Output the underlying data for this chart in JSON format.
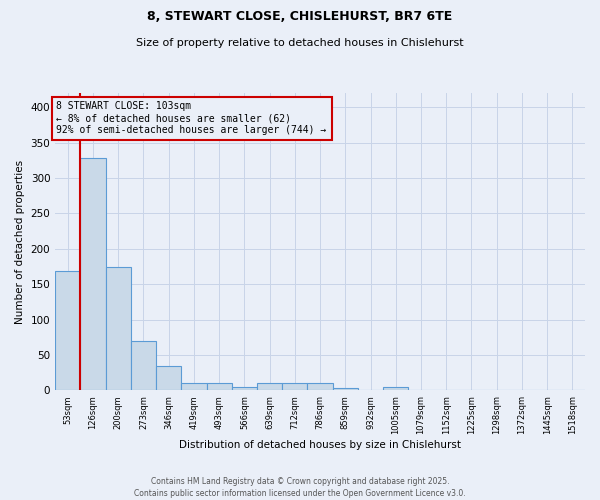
{
  "title1": "8, STEWART CLOSE, CHISLEHURST, BR7 6TE",
  "title2": "Size of property relative to detached houses in Chislehurst",
  "xlabel": "Distribution of detached houses by size in Chislehurst",
  "ylabel": "Number of detached properties",
  "categories": [
    "53sqm",
    "126sqm",
    "200sqm",
    "273sqm",
    "346sqm",
    "419sqm",
    "493sqm",
    "566sqm",
    "639sqm",
    "712sqm",
    "786sqm",
    "859sqm",
    "932sqm",
    "1005sqm",
    "1079sqm",
    "1152sqm",
    "1225sqm",
    "1298sqm",
    "1372sqm",
    "1445sqm",
    "1518sqm"
  ],
  "values": [
    168,
    328,
    175,
    70,
    35,
    10,
    10,
    5,
    10,
    10,
    10,
    3,
    0,
    5,
    0,
    0,
    0,
    0,
    0,
    0,
    0
  ],
  "bar_color": "#c9d9e8",
  "bar_edge_color": "#5b9bd5",
  "vline_x": 1,
  "vline_color": "#cc0000",
  "annotation_text": "8 STEWART CLOSE: 103sqm\n← 8% of detached houses are smaller (62)\n92% of semi-detached houses are larger (744) →",
  "annotation_box_color": "#cc0000",
  "ylim": [
    0,
    420
  ],
  "yticks": [
    0,
    50,
    100,
    150,
    200,
    250,
    300,
    350,
    400
  ],
  "footer_text": "Contains HM Land Registry data © Crown copyright and database right 2025.\nContains public sector information licensed under the Open Government Licence v3.0.",
  "grid_color": "#c8d4e8",
  "background_color": "#eaeff8"
}
